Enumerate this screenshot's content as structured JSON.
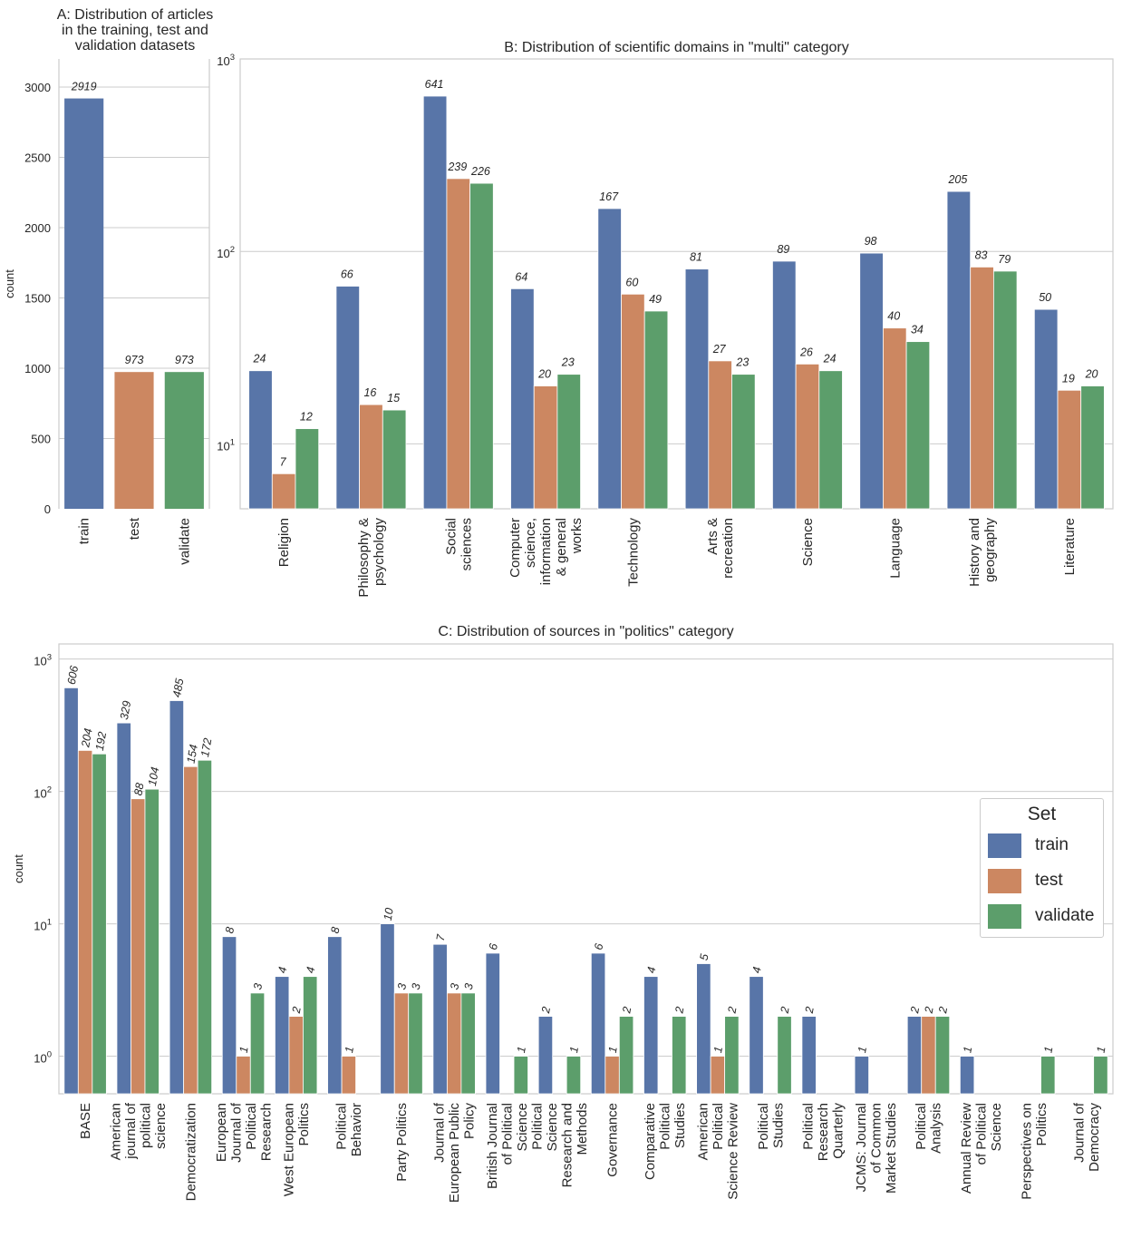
{
  "colors": {
    "train": "#5875a8",
    "test": "#cc8761",
    "validate": "#5c9e6b"
  },
  "panelA": {
    "title": [
      "A:    Distribution of articles",
      "in the training, test and",
      "validation datasets"
    ],
    "ylabel": "count",
    "chart_data": {
      "type": "bar",
      "categories": [
        "train",
        "test",
        "validate"
      ],
      "values": [
        2919,
        973,
        973
      ],
      "ylim": [
        0,
        3200
      ],
      "yticks": [
        0,
        500,
        1000,
        1500,
        2000,
        2500,
        3000
      ],
      "grid": true
    }
  },
  "panelB": {
    "title": "B: Distribution of scientific domains in \"multi\" category",
    "chart_data": {
      "type": "bar",
      "yscale": "log",
      "ylim": [
        4.6,
        1000
      ],
      "yticks": [
        {
          "base": "10",
          "exp": "1"
        },
        {
          "base": "10",
          "exp": "2"
        },
        {
          "base": "10",
          "exp": "3"
        }
      ],
      "categories": [
        [
          "Religion"
        ],
        [
          "Philosophy &",
          "psychology"
        ],
        [
          "Social",
          "sciences"
        ],
        [
          "Computer",
          "science,",
          "information",
          "& general",
          "works"
        ],
        [
          "Technology"
        ],
        [
          "Arts &",
          "recreation"
        ],
        [
          "Science"
        ],
        [
          "Language"
        ],
        [
          "History and",
          "geography"
        ],
        [
          "Literature"
        ]
      ],
      "series": [
        {
          "name": "train",
          "values": [
            24,
            66,
            641,
            64,
            167,
            81,
            89,
            98,
            205,
            50
          ]
        },
        {
          "name": "test",
          "values": [
            7,
            16,
            239,
            20,
            60,
            27,
            26,
            40,
            83,
            19
          ]
        },
        {
          "name": "validate",
          "values": [
            12,
            15,
            226,
            23,
            49,
            23,
            24,
            34,
            79,
            20
          ]
        }
      ],
      "grid": true
    }
  },
  "panelC": {
    "title": "C: Distribution of sources in \"politics\" category",
    "ylabel": "count",
    "chart_data": {
      "type": "bar",
      "yscale": "log",
      "ylim": [
        0.52,
        1300
      ],
      "yticks": [
        {
          "base": "10",
          "exp": "0"
        },
        {
          "base": "10",
          "exp": "1"
        },
        {
          "base": "10",
          "exp": "2"
        },
        {
          "base": "10",
          "exp": "3"
        }
      ],
      "categories": [
        [
          "BASE"
        ],
        [
          "American",
          "journal of",
          "political",
          "science"
        ],
        [
          "Democratization"
        ],
        [
          "European",
          "Journal of",
          "Political",
          "Research"
        ],
        [
          "West European",
          "Politics"
        ],
        [
          "Political",
          "Behavior"
        ],
        [
          "Party Politics"
        ],
        [
          "Journal of",
          "European Public",
          "Policy"
        ],
        [
          "British Journal",
          "of Political",
          "Science"
        ],
        [
          "Political",
          "Science",
          "Research and",
          "Methods"
        ],
        [
          "Governance"
        ],
        [
          "Comparative",
          "Political",
          "Studies"
        ],
        [
          "American",
          "Political",
          "Science Review"
        ],
        [
          "Political",
          "Studies"
        ],
        [
          "Political",
          "Research",
          "Quarterly"
        ],
        [
          "JCMS: Journal",
          "of Common",
          "Market Studies"
        ],
        [
          "Political",
          "Analysis"
        ],
        [
          "Annual Review",
          "of Political",
          "Science"
        ],
        [
          "Perspectives on",
          "Politics"
        ],
        [
          "Journal of",
          "Democracy"
        ]
      ],
      "series": [
        {
          "name": "train",
          "values": [
            606,
            329,
            485,
            8,
            4,
            8,
            10,
            7,
            6,
            2,
            6,
            4,
            5,
            4,
            2,
            1,
            2,
            1,
            null,
            null
          ]
        },
        {
          "name": "test",
          "values": [
            204,
            88,
            154,
            1,
            2,
            1,
            3,
            3,
            null,
            null,
            1,
            null,
            1,
            null,
            null,
            null,
            2,
            null,
            null,
            null
          ]
        },
        {
          "name": "validate",
          "values": [
            192,
            104,
            172,
            3,
            4,
            null,
            3,
            3,
            1,
            1,
            2,
            2,
            2,
            2,
            null,
            null,
            2,
            null,
            1,
            1
          ]
        }
      ],
      "grid": true
    }
  },
  "legend": {
    "title": "Set",
    "items": [
      {
        "key": "train",
        "label": "train"
      },
      {
        "key": "test",
        "label": "test"
      },
      {
        "key": "validate",
        "label": "validate"
      }
    ]
  }
}
